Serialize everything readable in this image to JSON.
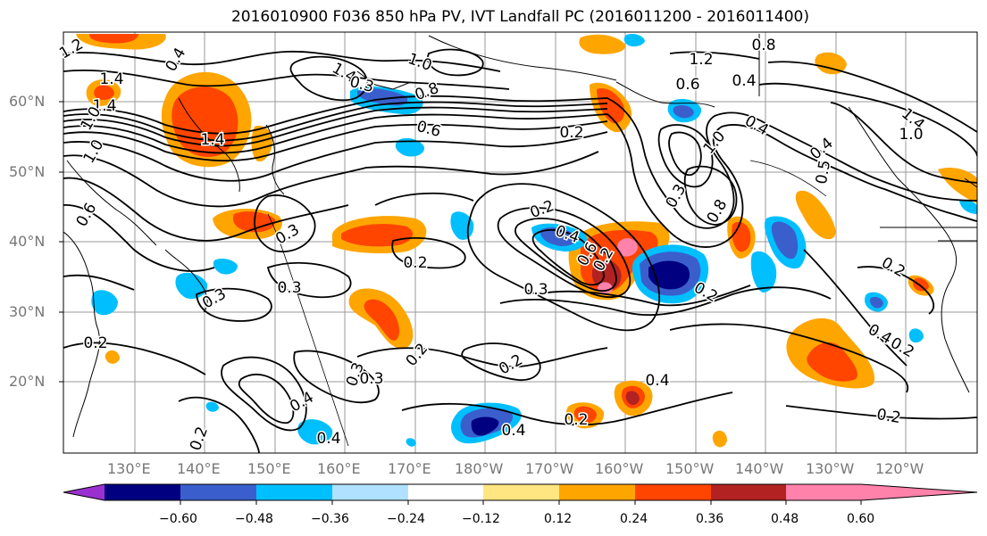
{
  "title": "2016010900 F036 850 hPa PV, IVT Landfall PC (2016011200 - 2016011400)",
  "map": {
    "lat_labels": [
      "60°N",
      "50°N",
      "40°N",
      "30°N",
      "20°N"
    ],
    "lon_labels": [
      "130°E",
      "140°E",
      "150°E",
      "160°E",
      "170°E",
      "180°W",
      "170°W",
      "160°W",
      "150°W",
      "140°W",
      "130°W",
      "120°W"
    ],
    "grid": true,
    "projection": "PlateCarree (approx 120°E–123°W, 10°N–70°N)"
  },
  "contour_labels": [
    "1.2",
    "1.4",
    "1.4",
    "1.4",
    "0.4",
    "1.0",
    "1.0",
    "0.6",
    "0.2",
    "1.4",
    "1.0",
    "0.3",
    "0.8",
    "0.6",
    "1.2",
    "0.8",
    "0.6",
    "0.4",
    "0.2",
    "0.4",
    "1.0",
    "0.8",
    "0.3",
    "0.4",
    "0.5",
    "1.4",
    "1.0",
    "0.3",
    "0.2",
    "0.3",
    "0.3",
    "0.2",
    "0.2",
    "0.4",
    "0.6",
    "0.3",
    "0.2",
    "0.2",
    "0.3",
    "0.3",
    "0.2",
    "0.4",
    "0.4",
    "0.2",
    "0.4",
    "0.4",
    "0.2",
    "0.2",
    "0.2",
    "0.2",
    "0.4"
  ],
  "colorbar": {
    "ticks": [
      "−0.60",
      "−0.48",
      "−0.36",
      "−0.24",
      "−0.12",
      "0.12",
      "0.24",
      "0.36",
      "0.48",
      "0.60"
    ],
    "colors": [
      "#9b30d0",
      "#000080",
      "#3a5fcd",
      "#00bfff",
      "#b0e2ff",
      "#ffffff",
      "#ffe680",
      "#ffa500",
      "#ff4500",
      "#b22222",
      "#ff82ab"
    ],
    "extend": "both"
  }
}
